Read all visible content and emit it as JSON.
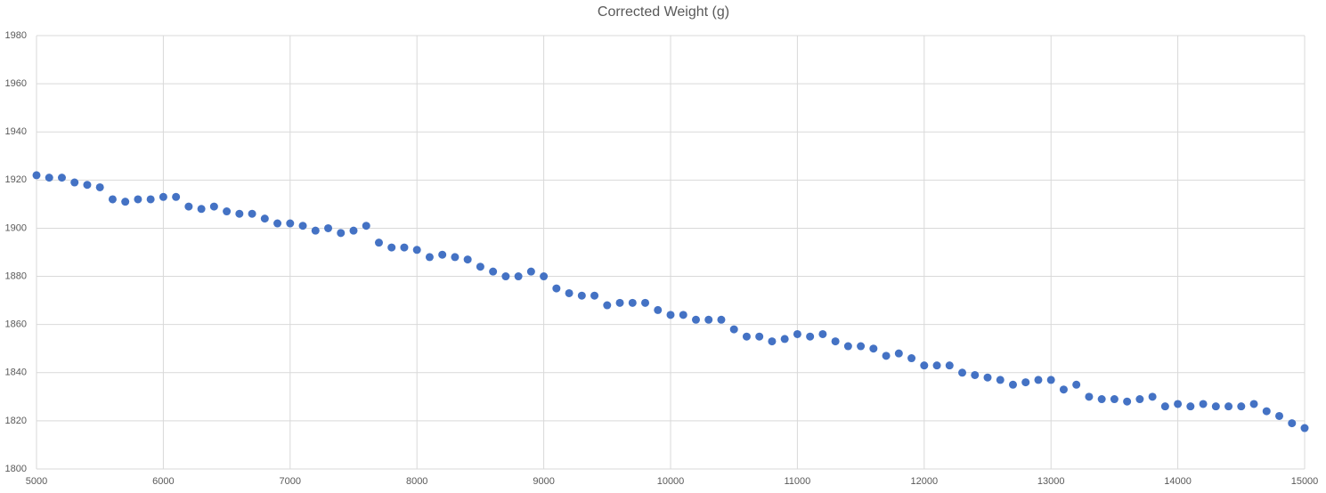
{
  "chart_data": {
    "type": "scatter",
    "title": "Corrected Weight (g)",
    "x": [
      5000,
      5100,
      5200,
      5300,
      5400,
      5500,
      5600,
      5700,
      5800,
      5900,
      6000,
      6100,
      6200,
      6300,
      6400,
      6500,
      6600,
      6700,
      6800,
      6900,
      7000,
      7100,
      7200,
      7300,
      7400,
      7500,
      7600,
      7700,
      7800,
      7900,
      8000,
      8100,
      8200,
      8300,
      8400,
      8500,
      8600,
      8700,
      8800,
      8900,
      9000,
      9100,
      9200,
      9300,
      9400,
      9500,
      9600,
      9700,
      9800,
      9900,
      10000,
      10100,
      10200,
      10300,
      10400,
      10500,
      10600,
      10700,
      10800,
      10900,
      11000,
      11100,
      11200,
      11300,
      11400,
      11500,
      11600,
      11700,
      11800,
      11900,
      12000,
      12100,
      12200,
      12300,
      12400,
      12500,
      12600,
      12700,
      12800,
      12900,
      13000,
      13100,
      13200,
      13300,
      13400,
      13500,
      13600,
      13700,
      13800,
      13900,
      14000,
      14100,
      14200,
      14300,
      14400,
      14500,
      14600,
      14700,
      14800,
      14900,
      15000
    ],
    "series": [
      {
        "color": "#4472c4",
        "values": [
          1922,
          1921,
          1921,
          1919,
          1918,
          1917,
          1912,
          1911,
          1912,
          1912,
          1913,
          1913,
          1909,
          1908,
          1909,
          1907,
          1906,
          1906,
          1904,
          1902,
          1902,
          1901,
          1899,
          1900,
          1898,
          1899,
          1901,
          1894,
          1892,
          1892,
          1891,
          1888,
          1889,
          1888,
          1887,
          1884,
          1882,
          1880,
          1880,
          1882,
          1880,
          1875,
          1873,
          1872,
          1872,
          1868,
          1869,
          1869,
          1869,
          1866,
          1864,
          1864,
          1862,
          1862,
          1862,
          1858,
          1855,
          1855,
          1853,
          1854,
          1856,
          1855,
          1856,
          1853,
          1851,
          1851,
          1850,
          1847,
          1848,
          1846,
          1843,
          1843,
          1843,
          1840,
          1839,
          1838,
          1837,
          1835,
          1836,
          1837,
          1837,
          1833,
          1835,
          1830,
          1829,
          1829,
          1828,
          1829,
          1830,
          1826,
          1827,
          1826,
          1827,
          1826,
          1826,
          1826,
          1827,
          1824,
          1822,
          1819,
          1817
        ]
      }
    ],
    "xlim": [
      5000,
      15000
    ],
    "xticks": [
      5000,
      6000,
      7000,
      8000,
      9000,
      10000,
      11000,
      12000,
      13000,
      14000,
      15000
    ],
    "ylim": [
      1800,
      1980
    ],
    "yticks": [
      1800,
      1820,
      1840,
      1860,
      1880,
      1900,
      1920,
      1940,
      1960,
      1980
    ],
    "grid": true
  }
}
